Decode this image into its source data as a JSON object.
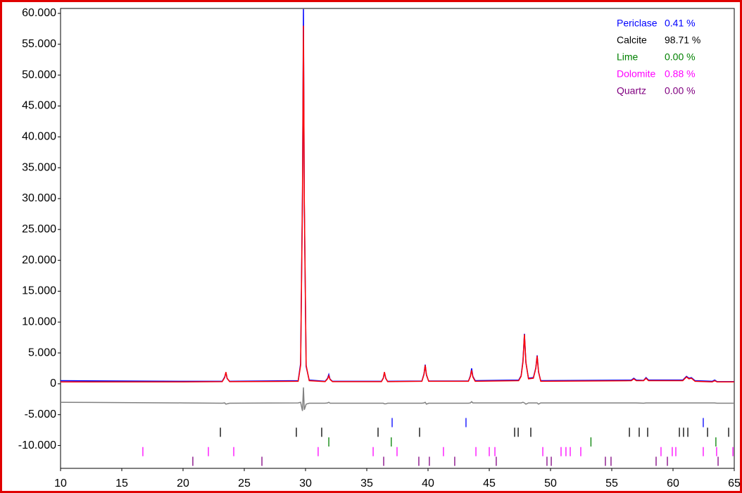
{
  "chart_data": {
    "type": "line",
    "grid": false,
    "xlim": [
      10,
      65
    ],
    "xticks": [
      10,
      15,
      20,
      25,
      30,
      35,
      40,
      45,
      50,
      55,
      60,
      65
    ],
    "ylim": [
      -13700,
      60800
    ],
    "yticks": [
      {
        "value": 60000,
        "label": "60.000"
      },
      {
        "value": 55000,
        "label": "55.000"
      },
      {
        "value": 50000,
        "label": "50.000"
      },
      {
        "value": 45000,
        "label": "45.000"
      },
      {
        "value": 40000,
        "label": "40.000"
      },
      {
        "value": 35000,
        "label": "35.000"
      },
      {
        "value": 30000,
        "label": "30.000"
      },
      {
        "value": 25000,
        "label": "25.000"
      },
      {
        "value": 20000,
        "label": "20.000"
      },
      {
        "value": 15000,
        "label": "15.000"
      },
      {
        "value": 10000,
        "label": "10.000"
      },
      {
        "value": 5000,
        "label": "5.000"
      },
      0,
      {
        "value": -5000,
        "label": "-5.000"
      },
      {
        "value": -10000,
        "label": "-10.000"
      }
    ],
    "x": [
      10,
      20,
      23.2,
      23.4,
      23.5,
      23.6,
      23.8,
      29.4,
      29.6,
      29.75,
      29.83,
      29.9,
      30.05,
      30.3,
      31.6,
      31.8,
      31.9,
      32.0,
      32.2,
      36.2,
      36.35,
      36.44,
      36.55,
      36.7,
      39.5,
      39.67,
      39.77,
      39.87,
      40.05,
      43.3,
      43.46,
      43.56,
      43.66,
      43.85,
      47.4,
      47.6,
      47.75,
      47.87,
      47.99,
      48.2,
      48.6,
      48.8,
      48.91,
      49.02,
      49.2,
      56.6,
      56.8,
      57.0,
      57.6,
      57.8,
      58.0,
      60.8,
      61.1,
      61.3,
      61.5,
      61.8,
      63.2,
      63.4,
      63.6,
      65
    ],
    "series": [
      {
        "color": "#0000ff",
        "values": [
          500,
          400,
          400,
          1100,
          1800,
          850,
          400,
          500,
          3300,
          31000,
          60700,
          29000,
          2800,
          600,
          400,
          900,
          1500,
          750,
          400,
          400,
          950,
          1850,
          850,
          400,
          450,
          1600,
          3100,
          1400,
          450,
          450,
          1300,
          2500,
          1200,
          500,
          600,
          1300,
          3700,
          8100,
          3400,
          900,
          1000,
          2600,
          4600,
          1900,
          500,
          600,
          900,
          600,
          550,
          1000,
          600,
          600,
          1200,
          900,
          1000,
          500,
          400,
          600,
          350,
          350
        ]
      },
      {
        "color": "#ff0000",
        "values": [
          300,
          300,
          350,
          1000,
          1900,
          900,
          350,
          400,
          3000,
          30000,
          58000,
          30000,
          3000,
          500,
          350,
          800,
          1300,
          700,
          350,
          350,
          900,
          1900,
          900,
          350,
          400,
          1500,
          3000,
          1500,
          400,
          400,
          1200,
          2200,
          1100,
          400,
          500,
          1200,
          3500,
          8000,
          3500,
          800,
          900,
          2500,
          4500,
          2000,
          400,
          500,
          800,
          500,
          500,
          900,
          500,
          500,
          1100,
          800,
          900,
          400,
          300,
          500,
          300,
          300
        ]
      },
      {
        "color": "#808080",
        "values": [
          -3000,
          -3100,
          -3150,
          -3100,
          -3300,
          -3250,
          -3150,
          -3100,
          -3000,
          -4400,
          -600,
          -4200,
          -3300,
          -3150,
          -3150,
          -3100,
          -3000,
          -3150,
          -3150,
          -3150,
          -3150,
          -3250,
          -3250,
          -3150,
          -3150,
          -3100,
          -3000,
          -3300,
          -3150,
          -3150,
          -3100,
          -2900,
          -3100,
          -3100,
          -3100,
          -3100,
          -3000,
          -3100,
          -3300,
          -3100,
          -3100,
          -3100,
          -3100,
          -3300,
          -3100,
          -3100,
          -3100,
          -3100,
          -3150,
          -3100,
          -3100,
          -3100,
          -3100,
          -3100,
          -3100,
          -3100,
          -3100,
          -3100,
          -3150,
          -3150
        ]
      }
    ],
    "phases": [
      {
        "name": "Periclase",
        "color": "#0000ff",
        "value": 0.41,
        "value_label": "0.41 %",
        "reflections": [
          37.07,
          43.1,
          62.47
        ]
      },
      {
        "name": "Calcite",
        "color": "#000000",
        "value": 98.71,
        "value_label": "98.71 %",
        "reflections": [
          23.05,
          29.25,
          31.32,
          35.92,
          39.31,
          47.07,
          47.36,
          48.39,
          56.44,
          57.24,
          57.93,
          60.52,
          60.86,
          61.21,
          62.82,
          64.54
        ]
      },
      {
        "name": "Lime",
        "color": "#008000",
        "value": 0.0,
        "value_label": "0.00 %",
        "reflections": [
          31.9,
          37.0,
          53.3,
          63.5
        ]
      },
      {
        "name": "Dolomite",
        "color": "#ff00ff",
        "value": 0.88,
        "value_label": "0.88 %",
        "reflections": [
          16.72,
          22.07,
          24.14,
          31.03,
          35.52,
          37.47,
          41.26,
          43.91,
          45.0,
          45.46,
          49.37,
          50.86,
          51.26,
          51.61,
          52.47,
          59.02,
          59.94,
          60.23,
          62.47,
          63.56,
          64.89
        ]
      },
      {
        "name": "Quartz",
        "color": "#800080",
        "value": 0.0,
        "value_label": "0.00 %",
        "reflections": [
          20.8,
          26.44,
          36.38,
          39.25,
          40.11,
          42.18,
          45.57,
          49.71,
          50.06,
          54.48,
          54.94,
          58.62,
          59.54,
          63.68
        ]
      }
    ]
  }
}
